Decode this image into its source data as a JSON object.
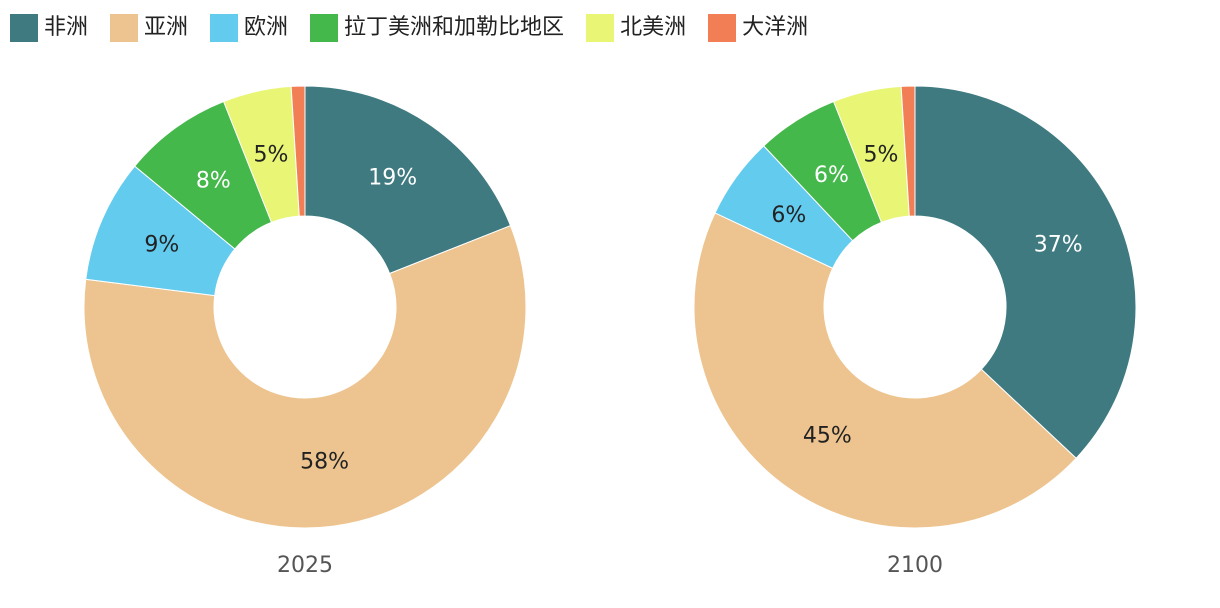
{
  "chart_data": [
    {
      "type": "pie",
      "title": "2025",
      "categories": [
        "非洲",
        "亚洲",
        "欧洲",
        "拉丁美洲和加勒比地区",
        "北美洲",
        "大洋洲"
      ],
      "values": [
        19,
        58,
        9,
        8,
        5,
        1
      ],
      "labels": [
        "19%",
        "58%",
        "9%",
        "8%",
        "5%",
        ""
      ]
    },
    {
      "type": "pie",
      "title": "2100",
      "categories": [
        "非洲",
        "亚洲",
        "欧洲",
        "拉丁美洲和加勒比地区",
        "北美洲",
        "大洋洲"
      ],
      "values": [
        37,
        45,
        6,
        6,
        5,
        1
      ],
      "labels": [
        "37%",
        "45%",
        "6%",
        "6%",
        "5%",
        ""
      ]
    }
  ],
  "legend": [
    {
      "label": "非洲",
      "color": "#3e7a80"
    },
    {
      "label": "亚洲",
      "color": "#edc48f"
    },
    {
      "label": "欧洲",
      "color": "#62cbee"
    },
    {
      "label": "拉丁美洲和加勒比地区",
      "color": "#44b84a"
    },
    {
      "label": "北美洲",
      "color": "#e8f575"
    },
    {
      "label": "大洋洲",
      "color": "#f27e56"
    }
  ],
  "label_colors": [
    "#ffffff",
    "#222222",
    "#222222",
    "#ffffff",
    "#222222",
    "#222222"
  ]
}
